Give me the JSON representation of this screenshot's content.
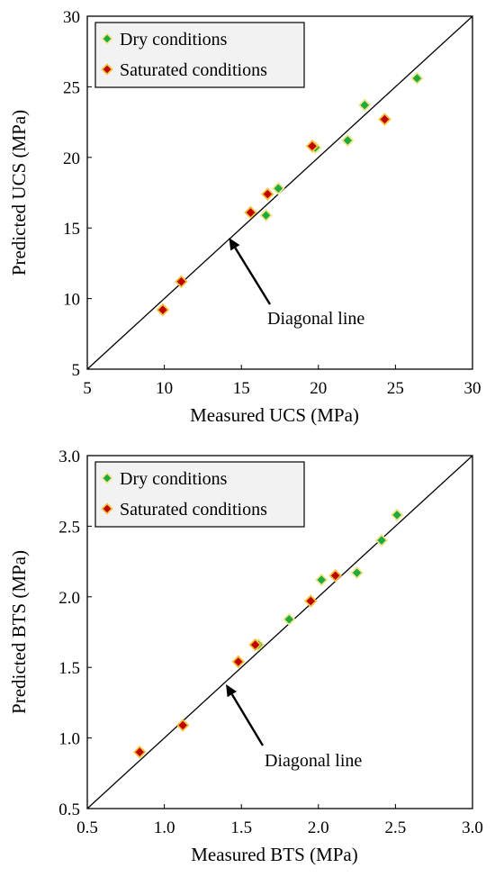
{
  "chart_data": [
    {
      "type": "scatter",
      "title": "",
      "xlabel": "Measured UCS (MPa)",
      "ylabel": "Predicted UCS (MPa)",
      "xlim": [
        5,
        30
      ],
      "ylim": [
        5,
        30
      ],
      "xticks": [
        "5",
        "10",
        "15",
        "20",
        "25",
        "30"
      ],
      "yticks": [
        "5",
        "10",
        "15",
        "20",
        "25",
        "30"
      ],
      "legend_position": "top-left",
      "diagonal_line": true,
      "annotation": {
        "text": "Diagonal line",
        "arrow_to": [
          14.2,
          14.3
        ]
      },
      "series": [
        {
          "name": "Dry conditions",
          "marker": "diamond",
          "fill": "#1faa3f",
          "edge": "#f0e68c",
          "points": [
            [
              16.6,
              15.9
            ],
            [
              17.4,
              17.8
            ],
            [
              19.8,
              20.7
            ],
            [
              21.9,
              21.2
            ],
            [
              23.0,
              23.7
            ],
            [
              26.4,
              25.6
            ]
          ]
        },
        {
          "name": "Saturated conditions",
          "marker": "diamond",
          "fill": "#c00000",
          "edge": "#f0c040",
          "points": [
            [
              9.9,
              9.2
            ],
            [
              11.1,
              11.2
            ],
            [
              15.6,
              16.1
            ],
            [
              16.7,
              17.4
            ],
            [
              19.6,
              20.8
            ],
            [
              24.3,
              22.7
            ]
          ]
        }
      ]
    },
    {
      "type": "scatter",
      "title": "",
      "xlabel": "Measured BTS (MPa)",
      "ylabel": "Predicted BTS (MPa)",
      "xlim": [
        0.5,
        3.0
      ],
      "ylim": [
        0.5,
        3.0
      ],
      "xticks": [
        "0.5",
        "1.0",
        "1.5",
        "2.0",
        "2.5",
        "3.0"
      ],
      "yticks": [
        "0.5",
        "1.0",
        "1.5",
        "2.0",
        "2.5",
        "3.0"
      ],
      "legend_position": "top-left",
      "diagonal_line": true,
      "annotation": {
        "text": "Diagonal line",
        "arrow_to": [
          1.4,
          1.38
        ]
      },
      "series": [
        {
          "name": "Dry conditions",
          "marker": "diamond",
          "fill": "#1faa3f",
          "edge": "#f0e68c",
          "points": [
            [
              1.61,
              1.66
            ],
            [
              1.81,
              1.84
            ],
            [
              2.02,
              2.12
            ],
            [
              2.25,
              2.17
            ],
            [
              2.41,
              2.4
            ],
            [
              2.51,
              2.58
            ]
          ]
        },
        {
          "name": "Saturated conditions",
          "marker": "diamond",
          "fill": "#c00000",
          "edge": "#f0c040",
          "points": [
            [
              0.84,
              0.9
            ],
            [
              1.12,
              1.09
            ],
            [
              1.48,
              1.54
            ],
            [
              1.59,
              1.66
            ],
            [
              1.95,
              1.97
            ],
            [
              2.11,
              2.15
            ]
          ]
        }
      ]
    }
  ]
}
